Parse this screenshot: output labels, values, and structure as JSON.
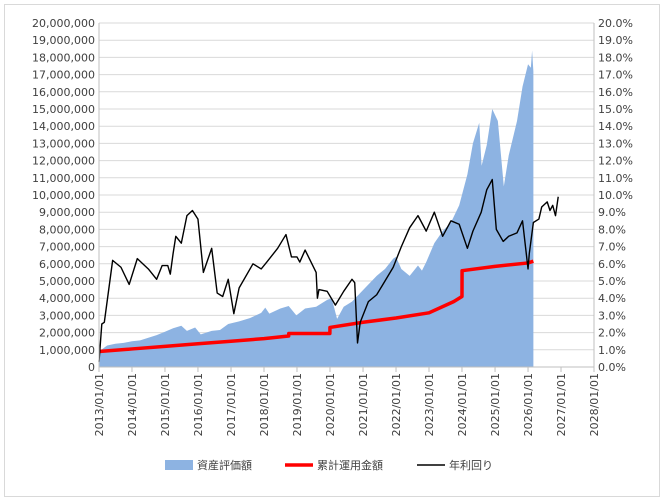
{
  "chart_data": {
    "type": "combo",
    "x_axis": {
      "type": "date",
      "min": "2013/01/01",
      "max": "2028/01/01",
      "tick_labels": [
        "2013/01/01",
        "2014/01/01",
        "2015/01/01",
        "2016/01/01",
        "2017/01/01",
        "2018/01/01",
        "2019/01/01",
        "2020/01/01",
        "2021/01/01",
        "2022/01/01",
        "2023/01/01",
        "2024/01/01",
        "2025/01/01",
        "2026/01/01",
        "2027/01/01",
        "2028/01/01"
      ]
    },
    "y_left": {
      "min": 0,
      "max": 20000000,
      "step": 1000000,
      "tick_labels": [
        "0",
        "1,000,000",
        "2,000,000",
        "3,000,000",
        "4,000,000",
        "5,000,000",
        "6,000,000",
        "7,000,000",
        "8,000,000",
        "9,000,000",
        "10,000,000",
        "11,000,000",
        "12,000,000",
        "13,000,000",
        "14,000,000",
        "15,000,000",
        "16,000,000",
        "17,000,000",
        "18,000,000",
        "19,000,000",
        "20,000,000"
      ]
    },
    "y_right": {
      "min": 0,
      "max": 0.2,
      "step": 0.01,
      "tick_labels": [
        "0.0%",
        "1.0%",
        "2.0%",
        "3.0%",
        "4.0%",
        "5.0%",
        "6.0%",
        "7.0%",
        "8.0%",
        "9.0%",
        "10.0%",
        "11.0%",
        "12.0%",
        "13.0%",
        "14.0%",
        "15.0%",
        "16.0%",
        "17.0%",
        "18.0%",
        "19.0%",
        "20.0%"
      ]
    },
    "grid": "horizontal",
    "legend_position": "bottom",
    "series": [
      {
        "name": "資産評価額",
        "type": "area",
        "axis": "left",
        "color": "#8db3e2",
        "points": [
          [
            "2013/01/01",
            900000
          ],
          [
            "2013/04/01",
            1250000
          ],
          [
            "2013/07/01",
            1350000
          ],
          [
            "2013/10/01",
            1400000
          ],
          [
            "2014/01/01",
            1500000
          ],
          [
            "2014/04/01",
            1550000
          ],
          [
            "2014/07/01",
            1700000
          ],
          [
            "2014/10/01",
            1850000
          ],
          [
            "2015/01/01",
            2050000
          ],
          [
            "2015/04/01",
            2250000
          ],
          [
            "2015/07/01",
            2400000
          ],
          [
            "2015/09/01",
            2100000
          ],
          [
            "2015/12/01",
            2300000
          ],
          [
            "2016/02/01",
            1900000
          ],
          [
            "2016/06/01",
            2100000
          ],
          [
            "2016/09/01",
            2150000
          ],
          [
            "2016/12/01",
            2500000
          ],
          [
            "2017/04/01",
            2650000
          ],
          [
            "2017/08/01",
            2850000
          ],
          [
            "2017/12/01",
            3150000
          ],
          [
            "2018/01/15",
            3450000
          ],
          [
            "2018/03/01",
            3100000
          ],
          [
            "2018/07/01",
            3400000
          ],
          [
            "2018/10/01",
            3550000
          ],
          [
            "2018/12/25",
            3000000
          ],
          [
            "2019/04/01",
            3400000
          ],
          [
            "2019/08/01",
            3500000
          ],
          [
            "2019/12/01",
            3900000
          ],
          [
            "2020/01/20",
            4000000
          ],
          [
            "2020/03/20",
            2800000
          ],
          [
            "2020/06/01",
            3500000
          ],
          [
            "2020/09/01",
            3800000
          ],
          [
            "2020/12/01",
            4300000
          ],
          [
            "2021/03/01",
            4800000
          ],
          [
            "2021/06/01",
            5300000
          ],
          [
            "2021/09/01",
            5700000
          ],
          [
            "2021/12/01",
            6300000
          ],
          [
            "2022/01/01",
            6400000
          ],
          [
            "2022/03/01",
            5700000
          ],
          [
            "2022/06/01",
            5300000
          ],
          [
            "2022/09/01",
            5900000
          ],
          [
            "2022/10/15",
            5600000
          ],
          [
            "2022/12/01",
            6100000
          ],
          [
            "2023/03/01",
            7200000
          ],
          [
            "2023/06/01",
            7900000
          ],
          [
            "2023/09/01",
            8400000
          ],
          [
            "2023/12/01",
            9400000
          ],
          [
            "2024/03/01",
            11200000
          ],
          [
            "2024/05/01",
            13000000
          ],
          [
            "2024/07/10",
            14200000
          ],
          [
            "2024/08/05",
            11700000
          ],
          [
            "2024/10/01",
            12900000
          ],
          [
            "2024/12/01",
            15000000
          ],
          [
            "2025/02/01",
            14300000
          ],
          [
            "2025/04/08",
            10500000
          ],
          [
            "2025/06/01",
            12300000
          ],
          [
            "2025/09/01",
            14300000
          ],
          [
            "2025/11/01",
            16300000
          ],
          [
            "2026/01/01",
            17600000
          ],
          [
            "2026/02/01",
            17400000
          ],
          [
            "2026/02/15",
            18400000
          ],
          [
            "2026/03/01",
            17200000
          ]
        ]
      },
      {
        "name": "累計運用金額",
        "type": "line",
        "axis": "left",
        "color": "#ff0000",
        "points": [
          [
            "2013/01/01",
            900000
          ],
          [
            "2014/01/01",
            1050000
          ],
          [
            "2015/01/01",
            1200000
          ],
          [
            "2016/01/01",
            1350000
          ],
          [
            "2017/01/01",
            1500000
          ],
          [
            "2018/01/01",
            1650000
          ],
          [
            "2018/10/01",
            1800000
          ],
          [
            "2018/10/02",
            1950000
          ],
          [
            "2019/12/31",
            1950000
          ],
          [
            "2020/01/01",
            2300000
          ],
          [
            "2021/01/01",
            2600000
          ],
          [
            "2022/01/01",
            2850000
          ],
          [
            "2023/01/01",
            3150000
          ],
          [
            "2023/10/01",
            3800000
          ],
          [
            "2024/01/01",
            4100000
          ],
          [
            "2024/01/02",
            5600000
          ],
          [
            "2025/01/01",
            5850000
          ],
          [
            "2026/01/01",
            6050000
          ],
          [
            "2026/03/01",
            6150000
          ]
        ]
      },
      {
        "name": "年利回り",
        "type": "line",
        "axis": "right",
        "color": "#000000",
        "points": [
          [
            "2013/01/01",
            0.003
          ],
          [
            "2013/02/01",
            0.025
          ],
          [
            "2013/03/01",
            0.026
          ],
          [
            "2013/06/01",
            0.062
          ],
          [
            "2013/09/01",
            0.058
          ],
          [
            "2013/12/01",
            0.048
          ],
          [
            "2014/03/01",
            0.063
          ],
          [
            "2014/07/01",
            0.057
          ],
          [
            "2014/10/01",
            0.051
          ],
          [
            "2014/12/01",
            0.059
          ],
          [
            "2015/02/01",
            0.059
          ],
          [
            "2015/03/01",
            0.054
          ],
          [
            "2015/04/01",
            0.066
          ],
          [
            "2015/05/01",
            0.076
          ],
          [
            "2015/07/01",
            0.072
          ],
          [
            "2015/09/01",
            0.088
          ],
          [
            "2015/11/01",
            0.091
          ],
          [
            "2016/01/01",
            0.086
          ],
          [
            "2016/03/01",
            0.055
          ],
          [
            "2016/06/01",
            0.069
          ],
          [
            "2016/08/01",
            0.043
          ],
          [
            "2016/10/01",
            0.041
          ],
          [
            "2016/12/01",
            0.051
          ],
          [
            "2017/02/01",
            0.031
          ],
          [
            "2017/04/01",
            0.046
          ],
          [
            "2017/09/01",
            0.06
          ],
          [
            "2017/12/01",
            0.057
          ],
          [
            "2018/02/01",
            0.061
          ],
          [
            "2018/06/01",
            0.069
          ],
          [
            "2018/09/01",
            0.077
          ],
          [
            "2018/11/01",
            0.064
          ],
          [
            "2019/01/01",
            0.064
          ],
          [
            "2019/02/01",
            0.061
          ],
          [
            "2019/04/01",
            0.068
          ],
          [
            "2019/08/01",
            0.055
          ],
          [
            "2019/08/15",
            0.04
          ],
          [
            "2019/09/01",
            0.045
          ],
          [
            "2019/12/01",
            0.044
          ],
          [
            "2020/03/01",
            0.036
          ],
          [
            "2020/06/01",
            0.044
          ],
          [
            "2020/09/01",
            0.051
          ],
          [
            "2020/10/01",
            0.049
          ],
          [
            "2020/11/01",
            0.014
          ],
          [
            "2020/12/01",
            0.026
          ],
          [
            "2021/03/01",
            0.038
          ],
          [
            "2021/06/01",
            0.042
          ],
          [
            "2021/09/01",
            0.05
          ],
          [
            "2021/12/01",
            0.058
          ],
          [
            "2022/03/01",
            0.07
          ],
          [
            "2022/06/01",
            0.081
          ],
          [
            "2022/09/01",
            0.088
          ],
          [
            "2022/12/01",
            0.079
          ],
          [
            "2023/03/01",
            0.09
          ],
          [
            "2023/06/01",
            0.076
          ],
          [
            "2023/09/01",
            0.085
          ],
          [
            "2023/12/01",
            0.083
          ],
          [
            "2024/03/01",
            0.069
          ],
          [
            "2024/05/01",
            0.079
          ],
          [
            "2024/08/01",
            0.09
          ],
          [
            "2024/10/01",
            0.103
          ],
          [
            "2024/12/01",
            0.109
          ],
          [
            "2025/01/15",
            0.08
          ],
          [
            "2025/04/01",
            0.073
          ],
          [
            "2025/06/01",
            0.076
          ],
          [
            "2025/09/01",
            0.078
          ],
          [
            "2025/11/01",
            0.085
          ],
          [
            "2026/01/01",
            0.057
          ],
          [
            "2026/01/15",
            0.066
          ],
          [
            "2026/03/01",
            0.084
          ],
          [
            "2026/05/01",
            0.086
          ],
          [
            "2026/06/01",
            0.093
          ],
          [
            "2026/08/01",
            0.096
          ],
          [
            "2026/09/01",
            0.091
          ],
          [
            "2026/10/01",
            0.094
          ],
          [
            "2026/11/01",
            0.088
          ],
          [
            "2026/12/01",
            0.099
          ]
        ]
      }
    ]
  }
}
